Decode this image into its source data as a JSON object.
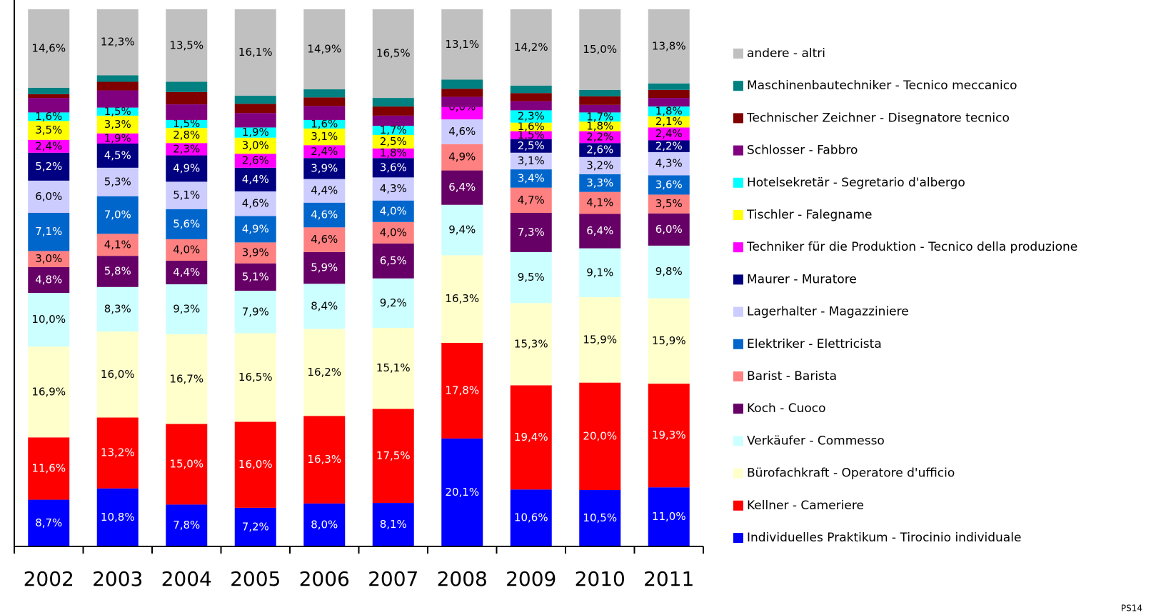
{
  "chart_data": {
    "type": "stacked_bar_100",
    "categories": [
      "2002",
      "2003",
      "2004",
      "2005",
      "2006",
      "2007",
      "2008",
      "2009",
      "2010",
      "2011"
    ],
    "ylim": [
      0,
      100
    ],
    "footer": "PS14",
    "series": [
      {
        "name": "Individuelles Praktikum - Tirocinio individuale",
        "color": "#0000ff",
        "values": [
          8.7,
          10.8,
          7.8,
          7.2,
          8.0,
          8.1,
          20.1,
          10.6,
          10.5,
          11.0
        ],
        "value_labels": [
          "8,7%",
          "10,8%",
          "7,8%",
          "7,2%",
          "8,0%",
          "8,1%",
          "20,1%",
          "10,6%",
          "10,5%",
          "11,0%"
        ]
      },
      {
        "name": "Kellner - Cameriere",
        "color": "#ff0000",
        "values": [
          11.6,
          13.2,
          15.0,
          16.0,
          16.3,
          17.5,
          17.8,
          19.4,
          20.0,
          19.3
        ],
        "value_labels": [
          "11,6%",
          "13,2%",
          "15,0%",
          "16,0%",
          "16,3%",
          "17,5%",
          "17,8%",
          "19,4%",
          "20,0%",
          "19,3%"
        ]
      },
      {
        "name": "Bürofachkraft - Operatore d'ufficio",
        "color": "#ffffcc",
        "values": [
          16.9,
          16.0,
          16.7,
          16.5,
          16.2,
          15.1,
          16.3,
          15.3,
          15.9,
          15.9
        ],
        "value_labels": [
          "16,9%",
          "16,0%",
          "16,7%",
          "16,5%",
          "16,2%",
          "15,1%",
          "16,3%",
          "15,3%",
          "15,9%",
          "15,9%"
        ]
      },
      {
        "name": "Verkäufer - Commesso",
        "color": "#ccffff",
        "values": [
          10.0,
          8.3,
          9.3,
          7.9,
          8.4,
          9.2,
          9.4,
          9.5,
          9.1,
          9.8
        ],
        "value_labels": [
          "10,0%",
          "8,3%",
          "9,3%",
          "7,9%",
          "8,4%",
          "9,2%",
          "9,4%",
          "9,5%",
          "9,1%",
          "9,8%"
        ]
      },
      {
        "name": "Koch - Cuoco",
        "color": "#660066",
        "values": [
          4.8,
          5.8,
          4.4,
          5.1,
          5.9,
          6.5,
          6.4,
          7.3,
          6.4,
          6.0
        ],
        "value_labels": [
          "4,8%",
          "5,8%",
          "4,4%",
          "5,1%",
          "5,9%",
          "6,5%",
          "6,4%",
          "7,3%",
          "6,4%",
          "6,0%"
        ]
      },
      {
        "name": "Barist - Barista",
        "color": "#ff8080",
        "values": [
          3.0,
          4.1,
          4.0,
          3.9,
          4.6,
          4.0,
          4.9,
          4.7,
          4.1,
          3.5
        ],
        "value_labels": [
          "3,0%",
          "4,1%",
          "4,0%",
          "3,9%",
          "4,6%",
          "4,0%",
          "4,9%",
          "4,7%",
          "4,1%",
          "3,5%"
        ]
      },
      {
        "name": "Elektriker - Elettricista",
        "color": "#0066cc",
        "values": [
          7.1,
          7.0,
          5.6,
          4.9,
          4.6,
          4.0,
          0,
          3.4,
          3.3,
          3.6
        ],
        "value_labels": [
          "7,1%",
          "7,0%",
          "5,6%",
          "4,9%",
          "4,6%",
          "4,0%",
          null,
          "3,4%",
          "3,3%",
          "3,6%"
        ]
      },
      {
        "name": "Lagerhalter - Magazziniere",
        "color": "#ccccff",
        "values": [
          6.0,
          5.3,
          5.1,
          4.6,
          4.4,
          4.3,
          4.6,
          3.1,
          3.2,
          4.3
        ],
        "value_labels": [
          "6,0%",
          "5,3%",
          "5,1%",
          "4,6%",
          "4,4%",
          "4,3%",
          "4,6%",
          "3,1%",
          "3,2%",
          "4,3%"
        ]
      },
      {
        "name": "Maurer - Muratore",
        "color": "#000080",
        "values": [
          5.2,
          4.5,
          4.9,
          4.4,
          3.9,
          3.6,
          0,
          2.5,
          2.6,
          2.2
        ],
        "value_labels": [
          "5,2%",
          "4,5%",
          "4,9%",
          "4,4%",
          "3,9%",
          "3,6%",
          null,
          "2,5%",
          "2,6%",
          "2,2%"
        ]
      },
      {
        "name": "Techniker für die Produktion - Tecnico della produzione",
        "color": "#ff00ff",
        "values": [
          2.4,
          1.9,
          2.3,
          2.6,
          2.4,
          1.8,
          2.3,
          1.5,
          2.2,
          2.4
        ],
        "value_labels": [
          "2,4%",
          "1,9%",
          "2,3%",
          "2,6%",
          "2,4%",
          "1,8%",
          null,
          "1,5%",
          "2,2%",
          "2,4%"
        ]
      },
      {
        "name": "Tischler - Falegname",
        "color": "#ffff00",
        "values": [
          3.5,
          3.3,
          2.8,
          3.0,
          3.1,
          2.5,
          0,
          1.6,
          1.8,
          2.1
        ],
        "value_labels": [
          "3,5%",
          "3,3%",
          "2,8%",
          "3,0%",
          "3,1%",
          "2,5%",
          null,
          "1,6%",
          "1,8%",
          "2,1%"
        ]
      },
      {
        "name": "Hotelsekretär - Segretario d'albergo",
        "color": "#00ffff",
        "values": [
          1.6,
          1.5,
          1.5,
          1.9,
          1.6,
          1.7,
          0.0,
          2.3,
          1.7,
          1.8
        ],
        "value_labels": [
          "1,6%",
          "1,5%",
          "1,5%",
          "1,9%",
          "1,6%",
          "1,7%",
          "0,0%",
          "2,3%",
          "1,7%",
          "1,8%"
        ]
      },
      {
        "name": "Schlosser - Fabbro",
        "color": "#800080",
        "values": [
          2.7,
          3.2,
          2.9,
          2.7,
          2.6,
          1.9,
          1.9,
          1.7,
          1.4,
          1.6
        ],
        "value_labels": [
          null,
          null,
          null,
          null,
          null,
          null,
          null,
          null,
          null,
          null
        ]
      },
      {
        "name": "Technischer Zeichner - Disegnatore tecnico",
        "color": "#800000",
        "values": [
          0.7,
          1.6,
          2.3,
          1.7,
          1.6,
          1.7,
          1.5,
          1.5,
          1.6,
          1.5
        ],
        "value_labels": [
          null,
          null,
          null,
          null,
          null,
          null,
          null,
          null,
          null,
          null
        ]
      },
      {
        "name": "Maschinenbautechniker - Tecnico meccanico",
        "color": "#008080",
        "values": [
          1.2,
          1.2,
          1.9,
          1.5,
          1.5,
          1.6,
          1.7,
          1.4,
          1.2,
          1.2
        ],
        "value_labels": [
          null,
          null,
          null,
          null,
          null,
          null,
          null,
          null,
          null,
          null
        ]
      },
      {
        "name": "andere - altri",
        "color": "#c0c0c0",
        "values": [
          14.6,
          12.3,
          13.5,
          16.1,
          14.9,
          16.5,
          13.1,
          14.2,
          15.0,
          13.8
        ],
        "value_labels": [
          "14,6%",
          "12,3%",
          "13,5%",
          "16,1%",
          "14,9%",
          "16,5%",
          "13,1%",
          "14,2%",
          "15,0%",
          "13,8%"
        ]
      }
    ]
  }
}
